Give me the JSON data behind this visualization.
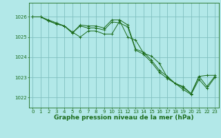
{
  "title": "Graphe pression niveau de la mer (hPa)",
  "background_color": "#b2e8e8",
  "grid_color": "#80c0c0",
  "line_color": "#1a6b1a",
  "marker_color": "#1a6b1a",
  "xlim": [
    -0.5,
    23.5
  ],
  "ylim": [
    1021.5,
    1026.7
  ],
  "yticks": [
    1022,
    1023,
    1024,
    1025,
    1026
  ],
  "xticks": [
    0,
    1,
    2,
    3,
    4,
    5,
    6,
    7,
    8,
    9,
    10,
    11,
    12,
    13,
    14,
    15,
    16,
    17,
    18,
    19,
    20,
    21,
    22,
    23
  ],
  "series1": [
    1026.0,
    1026.0,
    1025.85,
    1025.7,
    1025.55,
    1025.25,
    1025.0,
    1025.3,
    1025.3,
    1025.15,
    1025.15,
    1025.8,
    1025.0,
    1024.85,
    1024.2,
    1024.05,
    1023.7,
    1023.0,
    1022.7,
    1022.5,
    1022.2,
    1023.05,
    1023.1,
    1023.1
  ],
  "series2": [
    1026.0,
    1026.0,
    1025.8,
    1025.65,
    1025.55,
    1025.2,
    1025.6,
    1025.55,
    1025.55,
    1025.45,
    1025.85,
    1025.85,
    1025.6,
    1024.4,
    1024.25,
    1023.85,
    1023.35,
    1023.05,
    1022.7,
    1022.55,
    1022.2,
    1023.05,
    1022.55,
    1023.05
  ],
  "series3": [
    1026.0,
    1026.0,
    1025.8,
    1025.65,
    1025.55,
    1025.2,
    1025.55,
    1025.45,
    1025.45,
    1025.35,
    1025.75,
    1025.7,
    1025.5,
    1024.35,
    1024.15,
    1023.75,
    1023.25,
    1022.95,
    1022.7,
    1022.4,
    1022.15,
    1022.9,
    1022.45,
    1023.0
  ],
  "title_fontsize": 6.5,
  "tick_fontsize": 5,
  "linewidth": 0.7,
  "markersize": 2.5
}
